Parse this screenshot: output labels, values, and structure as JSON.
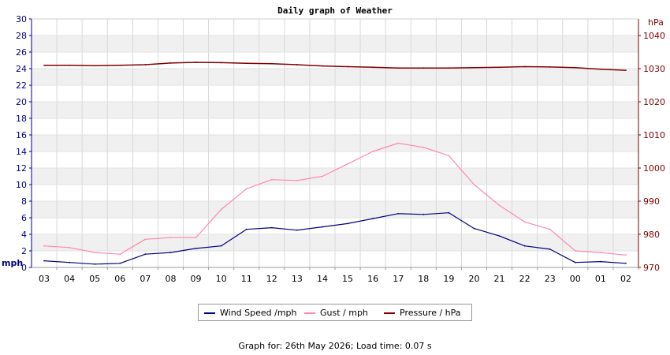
{
  "chart_data": {
    "type": "line",
    "title": "Daily graph of Weather",
    "y_left": {
      "label": "mph",
      "min": 0,
      "max": 30,
      "ticks": [
        "0",
        "2",
        "4",
        "6",
        "8",
        "10",
        "12",
        "14",
        "16",
        "18",
        "20",
        "22",
        "24",
        "26",
        "28",
        "30"
      ]
    },
    "y_right": {
      "label": "hPa",
      "min": 970,
      "max": 1045,
      "ticks": [
        "970",
        "980",
        "990",
        "1000",
        "1010",
        "1020",
        "1030",
        "1040"
      ]
    },
    "x_ticks": [
      "03",
      "04",
      "05",
      "06",
      "07",
      "08",
      "09",
      "10",
      "11",
      "12",
      "13",
      "14",
      "15",
      "16",
      "17",
      "18",
      "19",
      "20",
      "21",
      "22",
      "23",
      "00",
      "01",
      "02"
    ],
    "grid": true,
    "legend_placement": "bottom",
    "series": [
      {
        "name": "Wind Speed /mph",
        "axis": "left",
        "color": "#000080",
        "x": [
          "03",
          "04",
          "05",
          "06",
          "07",
          "08",
          "09",
          "10",
          "11",
          "12",
          "13",
          "14",
          "15",
          "16",
          "17",
          "18",
          "19",
          "20",
          "21",
          "22",
          "23",
          "00",
          "01",
          "02"
        ],
        "values": [
          0.8,
          0.6,
          0.4,
          0.5,
          1.6,
          1.8,
          2.3,
          2.6,
          4.6,
          4.8,
          4.5,
          4.9,
          5.3,
          5.9,
          6.5,
          6.4,
          6.6,
          4.7,
          3.8,
          2.6,
          2.2,
          0.6,
          0.7,
          0.5
        ]
      },
      {
        "name": "Gust / mph",
        "axis": "left",
        "color": "#ff88aa",
        "x": [
          "03",
          "04",
          "05",
          "06",
          "07",
          "08",
          "09",
          "10",
          "11",
          "12",
          "13",
          "14",
          "15",
          "16",
          "17",
          "18",
          "19",
          "20",
          "21",
          "22",
          "23",
          "00",
          "01",
          "02"
        ],
        "values": [
          2.6,
          2.4,
          1.8,
          1.6,
          3.4,
          3.6,
          3.6,
          7.0,
          9.5,
          10.6,
          10.5,
          11.0,
          12.5,
          14.0,
          15.0,
          14.5,
          13.5,
          10.0,
          7.5,
          5.5,
          4.6,
          2.0,
          1.8,
          1.5
        ]
      },
      {
        "name": "Pressure / hPa",
        "axis": "right",
        "color": "#800000",
        "x": [
          "03",
          "04",
          "05",
          "06",
          "07",
          "08",
          "09",
          "10",
          "11",
          "12",
          "13",
          "14",
          "15",
          "16",
          "17",
          "18",
          "19",
          "20",
          "21",
          "22",
          "23",
          "00",
          "01",
          "02"
        ],
        "values": [
          1031.0,
          1031.0,
          1030.9,
          1031.0,
          1031.2,
          1031.7,
          1031.9,
          1031.8,
          1031.6,
          1031.5,
          1031.2,
          1030.8,
          1030.6,
          1030.4,
          1030.2,
          1030.2,
          1030.2,
          1030.3,
          1030.4,
          1030.6,
          1030.5,
          1030.3,
          1029.8,
          1029.5
        ]
      }
    ]
  },
  "footer": {
    "text": "Graph for: 26th May 2026; Load time: 0.07 s"
  }
}
